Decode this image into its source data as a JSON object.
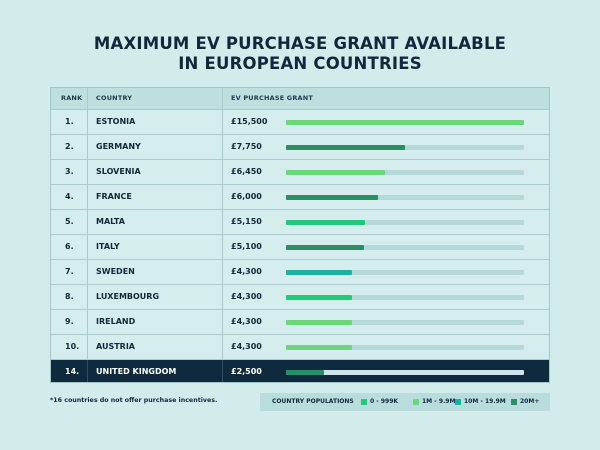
{
  "title": {
    "line1": "MAXIMUM EV PURCHASE GRANT AVAILABLE",
    "line2": "IN EUROPEAN COUNTRIES"
  },
  "table": {
    "headers": {
      "rank": "RANK",
      "country": "COUNTRY",
      "grant": "EV PURCHASE GRANT"
    }
  },
  "chart_data": {
    "type": "bar",
    "title": "MAXIMUM EV PURCHASE GRANT AVAILABLE IN EUROPEAN COUNTRIES",
    "xlim": [
      0,
      15500
    ],
    "rows": [
      {
        "rank": "1.",
        "country": "ESTONIA",
        "label": "£15,500",
        "value": 15500,
        "group": "1M - 9.9M",
        "highlight": false
      },
      {
        "rank": "2.",
        "country": "GERMANY",
        "label": "£7,750",
        "value": 7750,
        "group": "20M+",
        "highlight": false
      },
      {
        "rank": "3.",
        "country": "SLOVENIA",
        "label": "£6,450",
        "value": 6450,
        "group": "1M - 9.9M",
        "highlight": false
      },
      {
        "rank": "4.",
        "country": "FRANCE",
        "label": "£6,000",
        "value": 6000,
        "group": "20M+",
        "highlight": false
      },
      {
        "rank": "5.",
        "country": "MALTA",
        "label": "£5,150",
        "value": 5150,
        "group": "0 - 999K",
        "highlight": false
      },
      {
        "rank": "6.",
        "country": "ITALY",
        "label": "£5,100",
        "value": 5100,
        "group": "20M+",
        "highlight": false
      },
      {
        "rank": "7.",
        "country": "SWEDEN",
        "label": "£4,300",
        "value": 4300,
        "group": "10M - 19.9M",
        "highlight": false
      },
      {
        "rank": "8.",
        "country": "LUXEMBOURG",
        "label": "£4,300",
        "value": 4300,
        "group": "0 - 999K",
        "highlight": false
      },
      {
        "rank": "9.",
        "country": "IRELAND",
        "label": "£4,300",
        "value": 4300,
        "group": "1M - 9.9M",
        "highlight": false
      },
      {
        "rank": "10.",
        "country": "AUSTRIA",
        "label": "£4,300",
        "value": 4300,
        "group": "1M - 9.9M",
        "highlight": false
      },
      {
        "rank": "14.",
        "country": "UNITED KINGDOM",
        "label": "£2,500",
        "value": 2500,
        "group": "20M+",
        "highlight": true
      }
    ],
    "legend": {
      "title": "COUNTRY POPULATIONS",
      "items": [
        {
          "label": "0 - 999K",
          "color": "#22c97a"
        },
        {
          "label": "1M - 9.9M",
          "color": "#6cd67e"
        },
        {
          "label": "10M - 19.9M",
          "color": "#17b2a0"
        },
        {
          "label": "20M+",
          "color": "#2a8f66"
        }
      ],
      "placement": "bottom-right"
    }
  },
  "footnote": "*16 countries do not offer purchase incentives."
}
